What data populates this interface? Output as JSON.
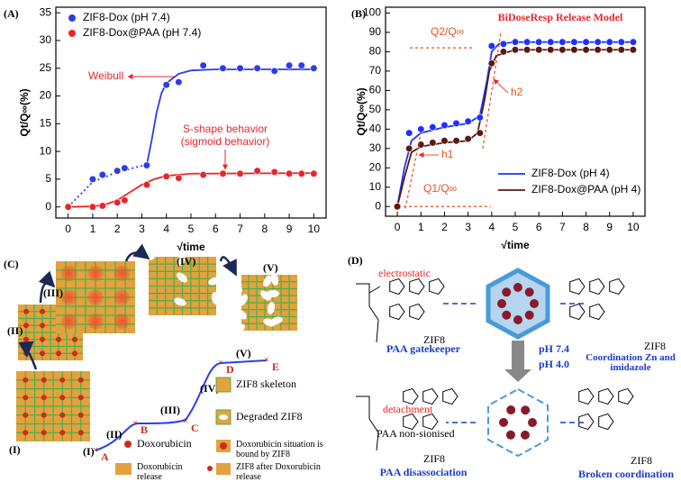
{
  "chart_data": [
    {
      "type": "scatter",
      "panel_label": "(A)",
      "x_label": "√time",
      "y_label": "Qt/Q∞(%)",
      "xlim": [
        -0.5,
        10.5
      ],
      "xticks": [
        0,
        1,
        2,
        3,
        4,
        5,
        6,
        7,
        8,
        9,
        10
      ],
      "ylim": [
        -2,
        36
      ],
      "yticks": [
        0,
        5,
        10,
        15,
        20,
        25,
        30,
        35
      ],
      "x": [
        0,
        1,
        1.4,
        2,
        2.3,
        3.2,
        4,
        4.5,
        5.5,
        6.3,
        7,
        7.7,
        8.4,
        9,
        9.5,
        10
      ],
      "series": [
        {
          "name": "ZIF8-Dox (pH 7.4)",
          "color": "#2a3ee8",
          "values": [
            0,
            5,
            5.8,
            6.5,
            7,
            7.5,
            22,
            22.5,
            25.5,
            25,
            25,
            25,
            24.5,
            25.5,
            25.5,
            25
          ]
        },
        {
          "name": "ZIF8-Dox@PAA (pH 7.4)",
          "color": "#e8262a",
          "values": [
            0,
            0,
            0.2,
            0.8,
            1.2,
            4,
            5.5,
            5.2,
            5.8,
            6,
            6,
            6.5,
            6.3,
            6,
            6,
            6
          ]
        }
      ],
      "fits": [
        {
          "color": "#2a3ee8",
          "dash": "2,3",
          "x": [
            0,
            1,
            2,
            3,
            3.2
          ],
          "values": [
            0,
            4.5,
            6.3,
            7.4,
            7.6
          ]
        },
        {
          "color": "#2a3ee8",
          "dash": "",
          "x": [
            3.2,
            3.4,
            3.6,
            3.8,
            4,
            4.5,
            5,
            6,
            10
          ],
          "values": [
            7.6,
            12,
            17,
            20.5,
            22.3,
            24,
            24.6,
            24.8,
            24.8
          ]
        },
        {
          "color": "#e8262a",
          "dash": "",
          "x": [
            0,
            1,
            1.5,
            2,
            2.5,
            3,
            3.5,
            4,
            5,
            10
          ],
          "values": [
            0,
            0.1,
            0.4,
            1.2,
            2.6,
            4,
            5,
            5.6,
            6,
            6.1
          ]
        }
      ],
      "annotations": [
        "Weibull",
        "S-shape behavior",
        "(sigmoid behavior)"
      ]
    },
    {
      "type": "scatter",
      "panel_label": "(B)",
      "x_label": "√time",
      "y_label": "Qt/Q∞(%)",
      "xlim": [
        -0.5,
        10.5
      ],
      "xticks": [
        0,
        1,
        2,
        3,
        4,
        5,
        6,
        7,
        8,
        9,
        10
      ],
      "ylim": [
        -5,
        103
      ],
      "yticks": [
        0,
        10,
        20,
        30,
        40,
        50,
        60,
        70,
        80,
        90,
        100
      ],
      "x": [
        0,
        0.5,
        1,
        1.5,
        2,
        2.5,
        3,
        3.5,
        4,
        4.5,
        5,
        5.5,
        6,
        6.5,
        7,
        7.5,
        8,
        8.5,
        9,
        9.5,
        10
      ],
      "series": [
        {
          "name": "ZIF8-Dox (pH 4)",
          "color": "#2030ff",
          "values": [
            0,
            38,
            40,
            41,
            42,
            43,
            44,
            46,
            83,
            84,
            85,
            85,
            85,
            85,
            85,
            85,
            85,
            85,
            85,
            85,
            85
          ]
        },
        {
          "name": "ZIF8-Dox@PAA (pH 4)",
          "color": "#5a1a10",
          "values": [
            0,
            30,
            32,
            33,
            34,
            34,
            35,
            38,
            74,
            80,
            81,
            81,
            81,
            81,
            81,
            81,
            81,
            81,
            81,
            81,
            81
          ]
        }
      ],
      "fits": [
        {
          "color": "#2030ff",
          "dash": "",
          "x": [
            0,
            0.3,
            0.6,
            1,
            2,
            3,
            3.5,
            3.8,
            4,
            4.3,
            5,
            10
          ],
          "values": [
            0,
            20,
            34,
            38,
            41,
            43,
            47,
            65,
            80,
            84,
            85,
            85
          ]
        },
        {
          "color": "#5a1a10",
          "dash": "",
          "x": [
            0,
            0.3,
            0.6,
            1,
            2,
            3,
            3.4,
            3.7,
            3.9,
            4.2,
            5,
            10
          ],
          "values": [
            0,
            15,
            28,
            31,
            33,
            34,
            38,
            55,
            70,
            78,
            81,
            81
          ]
        }
      ],
      "annotations": [
        "BiDoseResp  Release Model",
        "Q2/Q∞",
        "Q1/Q∞",
        "h1",
        "h2"
      ]
    }
  ],
  "panel_c": {
    "label": "(C)",
    "stages": [
      "(I)",
      "(II)",
      "(III)",
      "(IV)",
      "(V)"
    ],
    "curve_stages": [
      "(I)",
      "(II)",
      "(III)",
      "(IV)",
      "(V)"
    ],
    "points": [
      "A",
      "B",
      "C",
      "D",
      "E"
    ],
    "legend": [
      "ZIF8 skeleton",
      "Degraded ZIF8",
      "Doxorubicin",
      "Doxorubicin situation is bound by ZIF8",
      "Doxorubicin release",
      "ZIF8 after Doxorubicin release"
    ]
  },
  "panel_d": {
    "label": "(D)",
    "electrostatic": "electrostatic",
    "gatekeeper": "PAA gatekeeper",
    "coordination": "Coordination Zn and imidazole",
    "ph_from": "pH 7.4",
    "ph_to": "pH 4.0",
    "detachment": "detachment",
    "non_ionised": "PAA non-sionised",
    "disassociation": "PAA disassociation",
    "broken": "Broken coordination",
    "zif8_labels": [
      "ZIF8",
      "ZIF8",
      "ZIF8",
      "ZIF8"
    ]
  }
}
